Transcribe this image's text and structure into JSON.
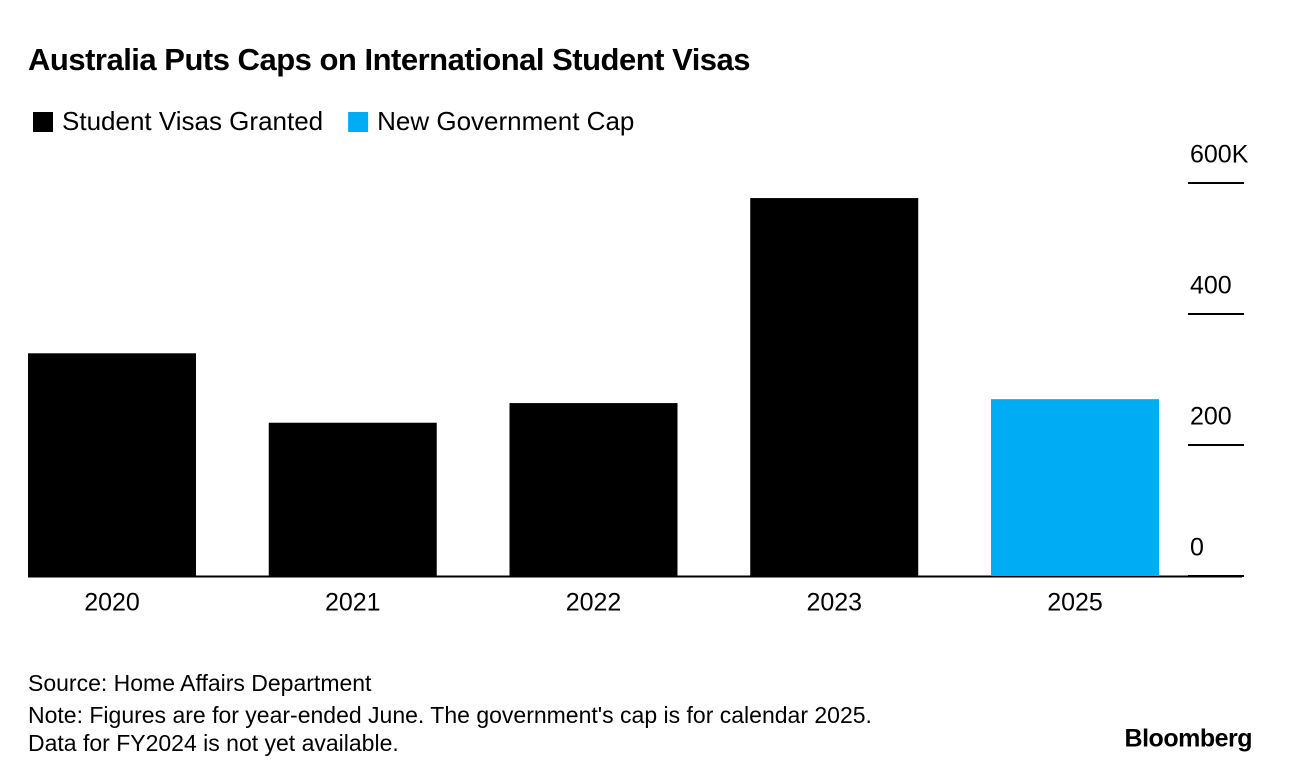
{
  "chart_data": {
    "type": "bar",
    "title": "Australia Puts Caps on International Student Visas",
    "categories": [
      "2020",
      "2021",
      "2022",
      "2023",
      "2025"
    ],
    "series": [
      {
        "name": "Student Visas Granted",
        "color": "#000000",
        "values": [
          340,
          234,
          264,
          577,
          null
        ]
      },
      {
        "name": "New Government Cap",
        "color": "#00adf5",
        "values": [
          null,
          null,
          null,
          null,
          270
        ]
      }
    ],
    "ylim": [
      0,
      600
    ],
    "yticks": [
      0,
      200,
      400,
      {
        "value": 600,
        "label": "600K"
      }
    ],
    "source": "Source: Home Affairs Department",
    "notes": [
      "Note: Figures are for year-ended June. The government's cap is for calendar 2025.",
      "Data for FY2024 is not yet available."
    ],
    "credit": "Bloomberg"
  }
}
